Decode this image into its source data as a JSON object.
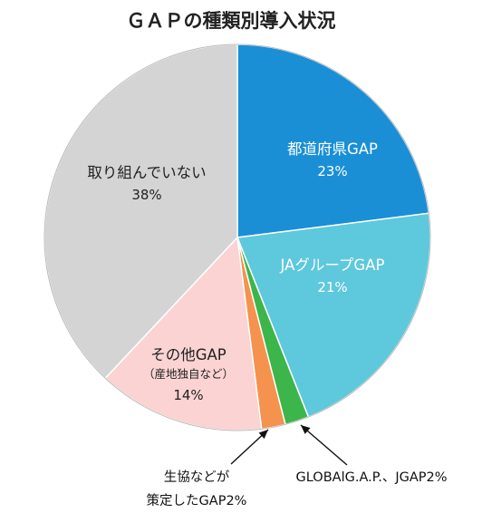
{
  "chart_data": {
    "type": "pie",
    "title": "ＧＡＰの種類別導入状況",
    "slices": [
      {
        "label": "都道府県GAP",
        "sublabel": "",
        "value": 23,
        "display": "23%",
        "color": "#1a8fd6"
      },
      {
        "label": "JAグループGAP",
        "sublabel": "",
        "value": 21,
        "display": "21%",
        "color": "#5ec8dc"
      },
      {
        "label": "GLOBALG.A.P.、JGAP2%",
        "sublabel": "",
        "value": 2,
        "display": "",
        "color": "#3cb54a"
      },
      {
        "label": "生協などが策定したGAP2%",
        "sublabel": "",
        "value": 2,
        "display": "",
        "color": "#f5924e"
      },
      {
        "label": "その他GAP",
        "sublabel": "（産地独自など）",
        "value": 14,
        "display": "14%",
        "color": "#fbd3d3"
      },
      {
        "label": "取り組んでいない",
        "sublabel": "",
        "value": 38,
        "display": "38%",
        "color": "#d4d4d4"
      }
    ],
    "callouts": {
      "orange_line1": "生協などが",
      "orange_line2": "策定したGAP2%",
      "green": "GLOBAlG.A.P.、JGAP2%"
    }
  }
}
